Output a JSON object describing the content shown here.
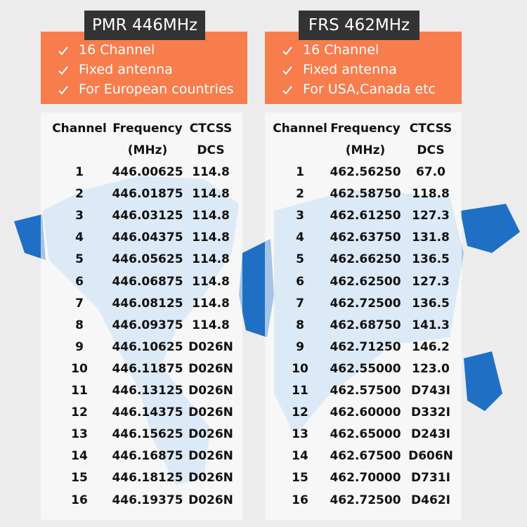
{
  "panels": [
    {
      "title": "PMR 446MHz",
      "features": [
        "16 Channel",
        "Fixed antenna",
        "For European countries"
      ],
      "table": {
        "headers": [
          [
            "Channel"
          ],
          [
            "Frequency",
            "(MHz)"
          ],
          [
            "CTCSS",
            "DCS"
          ]
        ],
        "rows": [
          [
            "1",
            "446.00625",
            "114.8"
          ],
          [
            "2",
            "446.01875",
            "114.8"
          ],
          [
            "3",
            "446.03125",
            "114.8"
          ],
          [
            "4",
            "446.04375",
            "114.8"
          ],
          [
            "5",
            "446.05625",
            "114.8"
          ],
          [
            "6",
            "446.06875",
            "114.8"
          ],
          [
            "7",
            "446.08125",
            "114.8"
          ],
          [
            "8",
            "446.09375",
            "114.8"
          ],
          [
            "9",
            "446.10625",
            "D026N"
          ],
          [
            "10",
            "446.11875",
            "D026N"
          ],
          [
            "11",
            "446.13125",
            "D026N"
          ],
          [
            "12",
            "446.14375",
            "D026N"
          ],
          [
            "13",
            "446.15625",
            "D026N"
          ],
          [
            "14",
            "446.16875",
            "D026N"
          ],
          [
            "15",
            "446.18125",
            "D026N"
          ],
          [
            "16",
            "446.19375",
            "D026N"
          ]
        ]
      }
    },
    {
      "title": "FRS 462MHz",
      "features": [
        "16 Channel",
        "Fixed antenna",
        "For USA,Canada etc"
      ],
      "table": {
        "headers": [
          [
            "Channel"
          ],
          [
            "Frequency",
            "(MHz)"
          ],
          [
            "CTCSS",
            "DCS"
          ]
        ],
        "rows": [
          [
            "1",
            "462.56250",
            "67.0"
          ],
          [
            "2",
            "462.58750",
            "118.8"
          ],
          [
            "3",
            "462.61250",
            "127.3"
          ],
          [
            "4",
            "462.63750",
            "131.8"
          ],
          [
            "5",
            "462.66250",
            "136.5"
          ],
          [
            "6",
            "462.62500",
            "127.3"
          ],
          [
            "7",
            "462.72500",
            "136.5"
          ],
          [
            "8",
            "462.68750",
            "141.3"
          ],
          [
            "9",
            "462.71250",
            "146.2"
          ],
          [
            "10",
            "462.55000",
            "123.0"
          ],
          [
            "11",
            "462.57500",
            "D743I"
          ],
          [
            "12",
            "462.60000",
            "D332I"
          ],
          [
            "13",
            "462.65000",
            "D243I"
          ],
          [
            "14",
            "462.67500",
            "D606N"
          ],
          [
            "15",
            "462.70000",
            "D731I"
          ],
          [
            "16",
            "462.72500",
            "D462I"
          ]
        ]
      }
    }
  ]
}
